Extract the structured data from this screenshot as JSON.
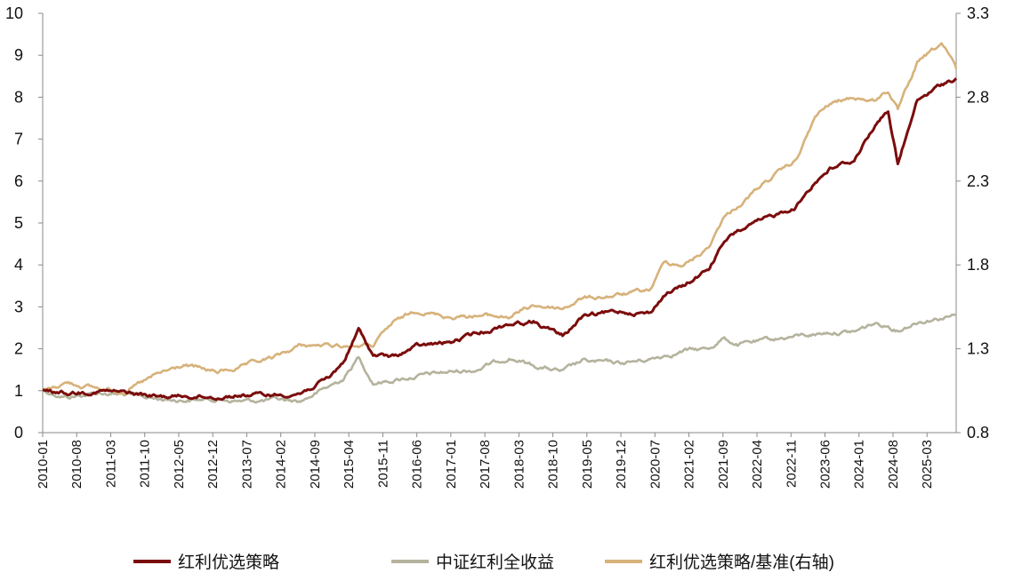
{
  "chart_data": {
    "type": "line",
    "title": "",
    "xlabel": "",
    "ylabel": "",
    "y_left": {
      "range": [
        0,
        10
      ],
      "ticks": [
        "0",
        "1",
        "2",
        "3",
        "4",
        "5",
        "6",
        "7",
        "8",
        "9",
        "10"
      ]
    },
    "y_right": {
      "range": [
        0.8,
        3.3
      ],
      "ticks": [
        "0.8",
        "1.3",
        "1.8",
        "2.3",
        "2.8",
        "3.3"
      ]
    },
    "x_range": [
      "2010-01",
      "2025-09"
    ],
    "x_ticks": [
      "2010-01",
      "2010-08",
      "2011-03",
      "2011-10",
      "2012-05",
      "2012-12",
      "2013-07",
      "2014-02",
      "2014-09",
      "2015-04",
      "2015-11",
      "2016-06",
      "2017-01",
      "2017-08",
      "2018-03",
      "2018-10",
      "2019-05",
      "2019-12",
      "2020-07",
      "2021-02",
      "2021-09",
      "2022-04",
      "2022-11",
      "2023-06",
      "2024-01",
      "2024-08",
      "2025-03"
    ],
    "legend": {
      "position": "bottom"
    },
    "grid": false,
    "series": [
      {
        "name": "红利优选策略",
        "axis": "left",
        "color": "#7b0c0c",
        "x": [
          "2010-01",
          "2010-06",
          "2011-01",
          "2011-06",
          "2012-01",
          "2012-06",
          "2013-01",
          "2013-06",
          "2014-01",
          "2014-06",
          "2014-12",
          "2015-03",
          "2015-06",
          "2015-09",
          "2016-01",
          "2016-06",
          "2017-01",
          "2017-06",
          "2018-01",
          "2018-06",
          "2018-12",
          "2019-04",
          "2019-12",
          "2020-06",
          "2020-09",
          "2021-01",
          "2021-06",
          "2021-09",
          "2021-12",
          "2022-06",
          "2022-12",
          "2023-04",
          "2023-07",
          "2023-12",
          "2024-04",
          "2024-07",
          "2024-09",
          "2025-01",
          "2025-06",
          "2025-09"
        ],
        "y": [
          1.0,
          0.95,
          1.0,
          0.95,
          0.85,
          0.88,
          0.85,
          0.9,
          0.9,
          0.95,
          1.3,
          1.7,
          2.45,
          1.85,
          1.8,
          2.05,
          2.15,
          2.35,
          2.6,
          2.65,
          2.3,
          2.75,
          2.9,
          2.85,
          3.3,
          3.5,
          3.9,
          4.5,
          4.8,
          5.1,
          5.4,
          6.0,
          6.3,
          6.5,
          7.3,
          7.7,
          6.4,
          7.9,
          8.3,
          8.45
        ]
      },
      {
        "name": "中证红利全收益",
        "axis": "left",
        "color": "#b5b39d",
        "x": [
          "2010-01",
          "2010-06",
          "2011-01",
          "2011-06",
          "2012-01",
          "2012-06",
          "2013-01",
          "2013-06",
          "2014-01",
          "2014-06",
          "2014-12",
          "2015-03",
          "2015-06",
          "2015-09",
          "2016-01",
          "2016-06",
          "2017-01",
          "2017-06",
          "2018-01",
          "2018-06",
          "2018-12",
          "2019-04",
          "2019-12",
          "2020-06",
          "2020-09",
          "2021-01",
          "2021-06",
          "2021-09",
          "2021-12",
          "2022-06",
          "2022-12",
          "2023-04",
          "2023-07",
          "2023-12",
          "2024-04",
          "2024-07",
          "2024-09",
          "2025-01",
          "2025-06",
          "2025-09"
        ],
        "y": [
          1.0,
          0.85,
          0.95,
          0.9,
          0.8,
          0.78,
          0.8,
          0.75,
          0.78,
          0.75,
          1.1,
          1.3,
          1.8,
          1.2,
          1.25,
          1.35,
          1.45,
          1.5,
          1.8,
          1.6,
          1.45,
          1.7,
          1.65,
          1.75,
          1.85,
          1.95,
          2.0,
          2.25,
          2.1,
          2.2,
          2.3,
          2.35,
          2.4,
          2.4,
          2.6,
          2.55,
          2.45,
          2.65,
          2.75,
          2.8
        ]
      },
      {
        "name": "红利优选策略/基准(右轴)",
        "axis": "right",
        "color": "#d7b27b",
        "x": [
          "2010-01",
          "2010-06",
          "2011-01",
          "2011-06",
          "2012-01",
          "2012-06",
          "2013-01",
          "2013-06",
          "2014-01",
          "2014-06",
          "2014-12",
          "2015-03",
          "2015-06",
          "2015-09",
          "2016-01",
          "2016-06",
          "2017-01",
          "2017-06",
          "2018-01",
          "2018-06",
          "2018-12",
          "2019-04",
          "2019-12",
          "2020-06",
          "2020-09",
          "2021-01",
          "2021-06",
          "2021-09",
          "2021-12",
          "2022-06",
          "2022-12",
          "2023-04",
          "2023-07",
          "2023-12",
          "2024-04",
          "2024-07",
          "2024-09",
          "2025-01",
          "2025-06",
          "2025-09"
        ],
        "y": [
          1.05,
          1.1,
          1.06,
          1.05,
          1.15,
          1.2,
          1.16,
          1.19,
          1.25,
          1.32,
          1.32,
          1.32,
          1.32,
          1.32,
          1.45,
          1.53,
          1.49,
          1.5,
          1.49,
          1.56,
          1.54,
          1.6,
          1.62,
          1.65,
          1.82,
          1.8,
          1.9,
          2.08,
          2.15,
          2.3,
          2.42,
          2.68,
          2.76,
          2.8,
          2.78,
          2.84,
          2.72,
          3.0,
          3.12,
          2.97
        ]
      }
    ]
  }
}
